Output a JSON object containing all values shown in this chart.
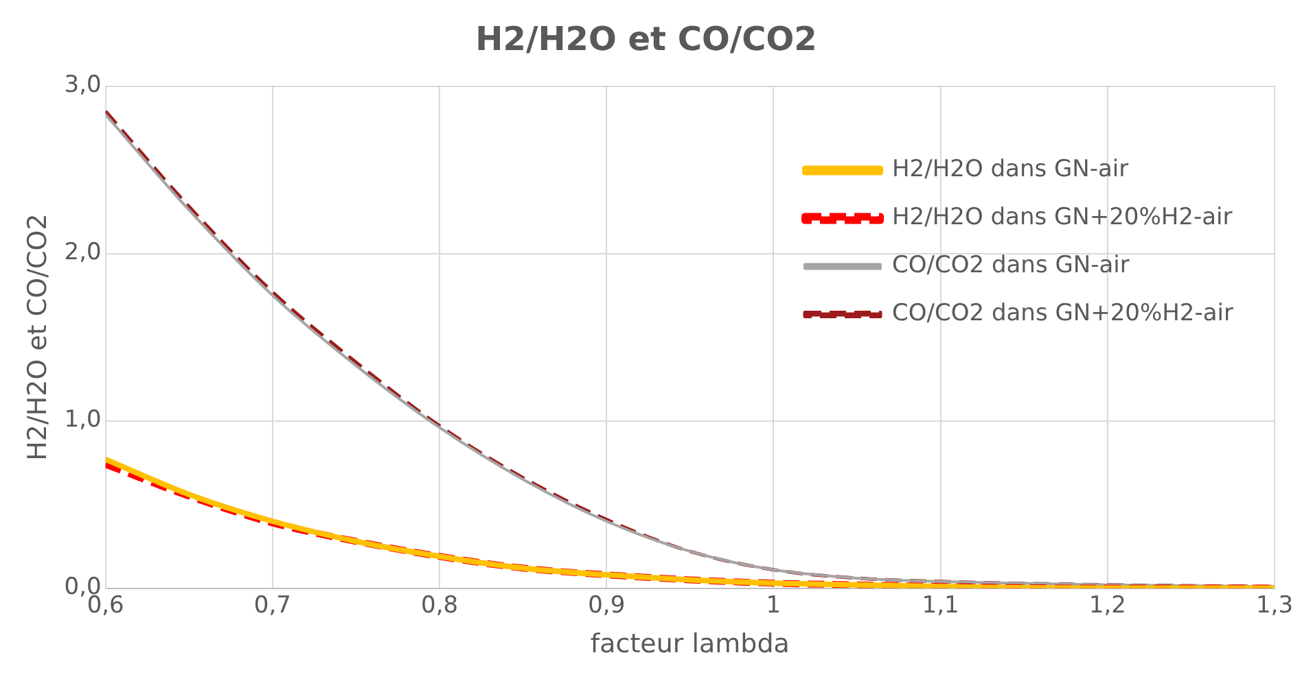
{
  "chart_data": {
    "type": "line",
    "title": "H2/H2O et CO/CO2",
    "xlabel": "facteur lambda",
    "ylabel": "H2/H2O et CO/CO2",
    "x": [
      0.6,
      0.65,
      0.7,
      0.75,
      0.8,
      0.85,
      0.9,
      0.95,
      1.0,
      1.05,
      1.1,
      1.2,
      1.3
    ],
    "series": [
      {
        "name": "H2/H2O dans GN-air",
        "color": "#ffc000",
        "line_style": "solid",
        "values": [
          0.77,
          0.56,
          0.4,
          0.28,
          0.19,
          0.12,
          0.08,
          0.05,
          0.03,
          0.02,
          0.01,
          0.0,
          0.0
        ]
      },
      {
        "name": "H2/H2O dans GN+20%H2-air",
        "color": "#ff0000",
        "line_style": "dashed",
        "values": [
          0.74,
          0.55,
          0.39,
          0.28,
          0.19,
          0.12,
          0.08,
          0.05,
          0.03,
          0.02,
          0.01,
          0.0,
          0.0
        ]
      },
      {
        "name": "CO/CO2 dans GN-air",
        "color": "#a5a5a5",
        "line_style": "solid",
        "values": [
          2.83,
          2.26,
          1.75,
          1.33,
          0.96,
          0.65,
          0.4,
          0.22,
          0.11,
          0.06,
          0.04,
          0.02,
          0.01
        ]
      },
      {
        "name": "CO/CO2 dans GN+20%H2-air",
        "color": "#9e1b1b",
        "line_style": "dashed",
        "values": [
          2.85,
          2.28,
          1.77,
          1.35,
          0.97,
          0.66,
          0.41,
          0.22,
          0.11,
          0.06,
          0.04,
          0.02,
          0.01
        ]
      }
    ],
    "xlim": [
      0.6,
      1.3
    ],
    "xticks": [
      {
        "value": 0.6,
        "label": "0,6"
      },
      {
        "value": 0.7,
        "label": "0,7"
      },
      {
        "value": 0.8,
        "label": "0,8"
      },
      {
        "value": 0.9,
        "label": "0,9"
      },
      {
        "value": 1.0,
        "label": "1"
      },
      {
        "value": 1.1,
        "label": "1,1"
      },
      {
        "value": 1.2,
        "label": "1,2"
      },
      {
        "value": 1.3,
        "label": "1,3"
      }
    ],
    "ylim": [
      0,
      3
    ],
    "yticks": [
      {
        "value": 0,
        "label": "0,0"
      },
      {
        "value": 1,
        "label": "1,0"
      },
      {
        "value": 2,
        "label": "2,0"
      },
      {
        "value": 3,
        "label": "3,0"
      }
    ],
    "grid": true,
    "legend": "top right",
    "marker": "none"
  }
}
